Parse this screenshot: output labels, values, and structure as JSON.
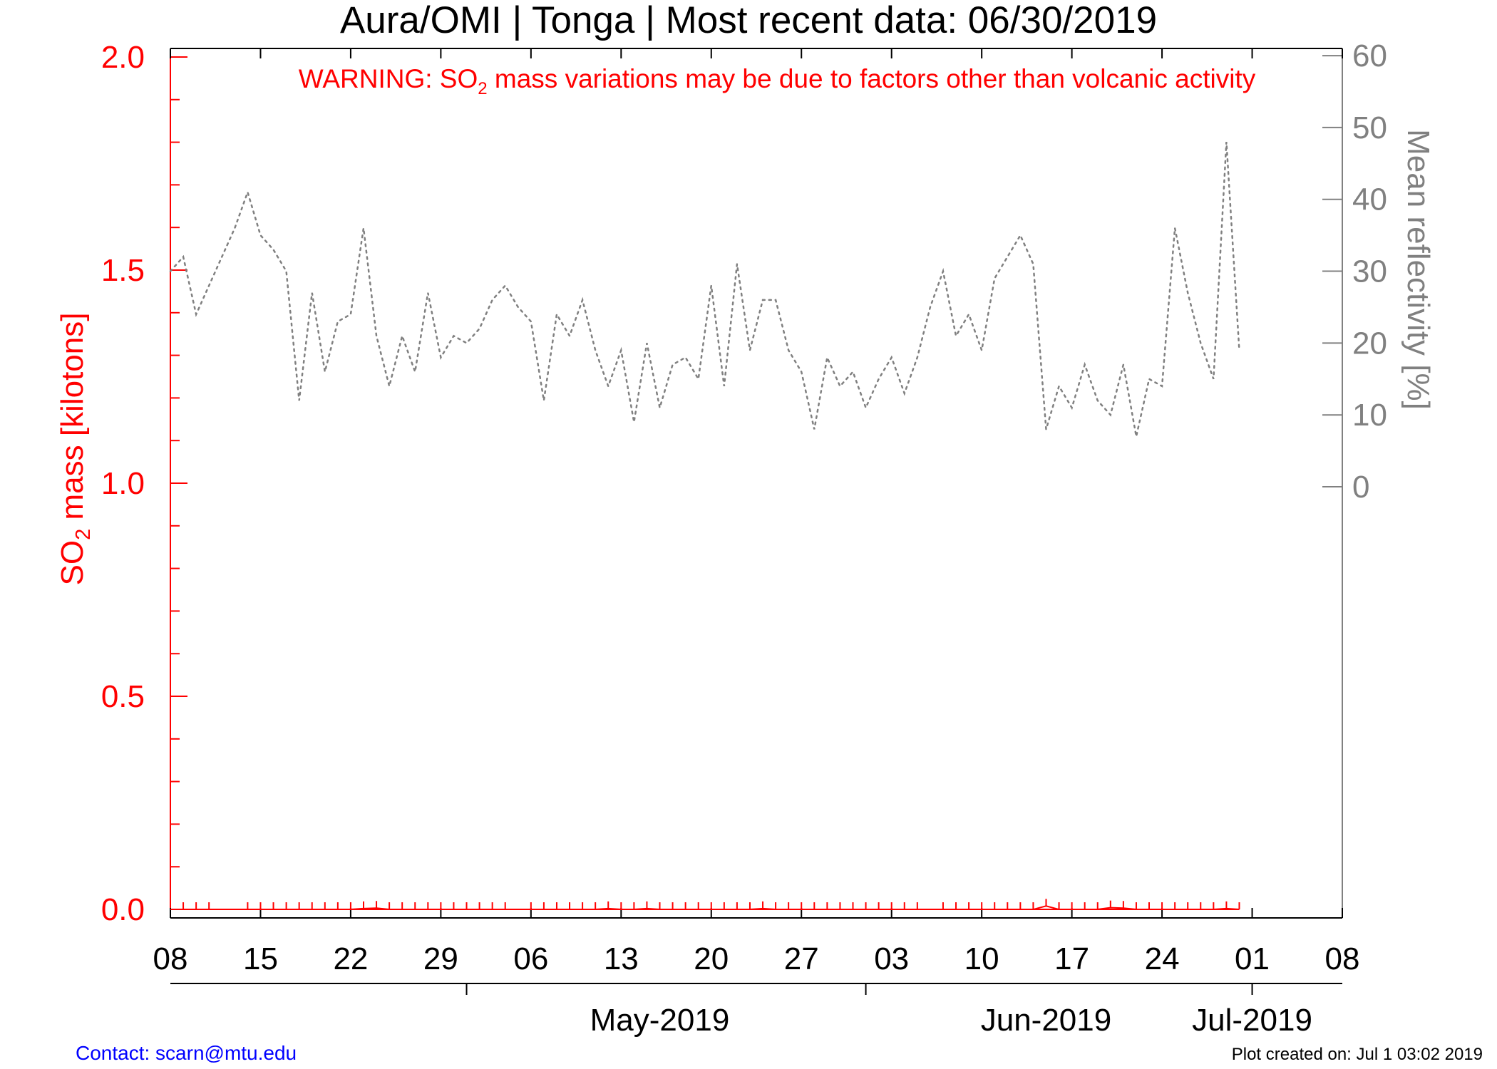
{
  "colors": {
    "so2": "#ff0000",
    "reflectivity": "#808080",
    "axis": "#000000",
    "contact": "#0000ff"
  },
  "footer": {
    "contact": "Contact: scarn@mtu.edu",
    "created": "Plot created on: Jul  1 03:02 2019"
  },
  "chart_data": {
    "type": "line",
    "title": "Aura/OMI | Tonga | Most recent data: 06/30/2019",
    "warning": {
      "prefix": "WARNING: SO",
      "subscript": "2",
      "suffix": " mass variations may be due to factors other than volcanic activity"
    },
    "ylabel_left": {
      "prefix": "SO",
      "subscript": "2",
      "suffix": " mass [kilotons]"
    },
    "ylabel_right": "Mean reflectivity [%]",
    "x_range": [
      "2019-04-08",
      "2019-07-08"
    ],
    "x_tick_labels": [
      "08",
      "15",
      "22",
      "29",
      "06",
      "13",
      "20",
      "27",
      "03",
      "10",
      "17",
      "24",
      "01",
      "08"
    ],
    "x_month_labels": [
      {
        "label": "May-2019",
        "date": "2019-05-16"
      },
      {
        "label": "Jun-2019",
        "date": "2019-06-15"
      },
      {
        "label": "Jul-2019",
        "date": "2019-07-01"
      }
    ],
    "y_left": {
      "range": [
        -0.02,
        2.02
      ],
      "tick_labels": [
        "0.0",
        "0.5",
        "1.0",
        "1.5",
        "2.0"
      ]
    },
    "y_right": {
      "range": [
        -60,
        61
      ],
      "tick_labels": [
        "0",
        "10",
        "20",
        "30",
        "40",
        "50",
        "60"
      ]
    },
    "series": [
      {
        "name": "SO2 mass",
        "axis": "left",
        "style": "solid",
        "dates": [
          "2019-04-09",
          "2019-04-10",
          "2019-04-11",
          "2019-04-14",
          "2019-04-15",
          "2019-04-16",
          "2019-04-17",
          "2019-04-18",
          "2019-04-19",
          "2019-04-20",
          "2019-04-21",
          "2019-04-22",
          "2019-04-23",
          "2019-04-24",
          "2019-04-25",
          "2019-04-26",
          "2019-04-27",
          "2019-04-28",
          "2019-04-29",
          "2019-04-30",
          "2019-05-01",
          "2019-05-02",
          "2019-05-03",
          "2019-05-04",
          "2019-05-06",
          "2019-05-07",
          "2019-05-08",
          "2019-05-09",
          "2019-05-10",
          "2019-05-11",
          "2019-05-12",
          "2019-05-13",
          "2019-05-14",
          "2019-05-15",
          "2019-05-16",
          "2019-05-17",
          "2019-05-18",
          "2019-05-19",
          "2019-05-20",
          "2019-05-21",
          "2019-05-22",
          "2019-05-23",
          "2019-05-24",
          "2019-05-25",
          "2019-05-26",
          "2019-05-27",
          "2019-05-28",
          "2019-05-29",
          "2019-05-30",
          "2019-05-31",
          "2019-06-01",
          "2019-06-02",
          "2019-06-03",
          "2019-06-04",
          "2019-06-05",
          "2019-06-07",
          "2019-06-08",
          "2019-06-09",
          "2019-06-10",
          "2019-06-11",
          "2019-06-12",
          "2019-06-13",
          "2019-06-14",
          "2019-06-15",
          "2019-06-16",
          "2019-06-17",
          "2019-06-18",
          "2019-06-19",
          "2019-06-20",
          "2019-06-21",
          "2019-06-22",
          "2019-06-23",
          "2019-06-24",
          "2019-06-25",
          "2019-06-26",
          "2019-06-27",
          "2019-06-28",
          "2019-06-29",
          "2019-06-30"
        ],
        "values": [
          0,
          0,
          0,
          0,
          0,
          0,
          0,
          0,
          0,
          0,
          0,
          0,
          0.002,
          0.003,
          0,
          0,
          0,
          0,
          0,
          0,
          0,
          0,
          0,
          0,
          0,
          0,
          0,
          0,
          0,
          0,
          0.002,
          0,
          0,
          0.002,
          0,
          0,
          0,
          0,
          0,
          0,
          0,
          0,
          0.002,
          0,
          0,
          0,
          0,
          0,
          0,
          0,
          0,
          0,
          0,
          0,
          0,
          0,
          0,
          0,
          0,
          0,
          0,
          0,
          0,
          0.008,
          0,
          0,
          0,
          0,
          0.004,
          0.003,
          0,
          0,
          0,
          0,
          0,
          0,
          0,
          0.002,
          0
        ]
      },
      {
        "name": "Mean reflectivity",
        "axis": "right",
        "style": "dotted",
        "dates": [
          "2019-04-08",
          "2019-04-09",
          "2019-04-10",
          "2019-04-11",
          "2019-04-12",
          "2019-04-13",
          "2019-04-14",
          "2019-04-15",
          "2019-04-16",
          "2019-04-17",
          "2019-04-18",
          "2019-04-19",
          "2019-04-20",
          "2019-04-21",
          "2019-04-22",
          "2019-04-23",
          "2019-04-24",
          "2019-04-25",
          "2019-04-26",
          "2019-04-27",
          "2019-04-28",
          "2019-04-29",
          "2019-04-30",
          "2019-05-01",
          "2019-05-02",
          "2019-05-03",
          "2019-05-04",
          "2019-05-05",
          "2019-05-06",
          "2019-05-07",
          "2019-05-08",
          "2019-05-09",
          "2019-05-10",
          "2019-05-11",
          "2019-05-12",
          "2019-05-13",
          "2019-05-14",
          "2019-05-15",
          "2019-05-16",
          "2019-05-17",
          "2019-05-18",
          "2019-05-19",
          "2019-05-20",
          "2019-05-21",
          "2019-05-22",
          "2019-05-23",
          "2019-05-24",
          "2019-05-25",
          "2019-05-26",
          "2019-05-27",
          "2019-05-28",
          "2019-05-29",
          "2019-05-30",
          "2019-05-31",
          "2019-06-01",
          "2019-06-02",
          "2019-06-03",
          "2019-06-04",
          "2019-06-05",
          "2019-06-06",
          "2019-06-07",
          "2019-06-08",
          "2019-06-09",
          "2019-06-10",
          "2019-06-11",
          "2019-06-12",
          "2019-06-13",
          "2019-06-14",
          "2019-06-15",
          "2019-06-16",
          "2019-06-17",
          "2019-06-18",
          "2019-06-19",
          "2019-06-20",
          "2019-06-21",
          "2019-06-22",
          "2019-06-23",
          "2019-06-24",
          "2019-06-25",
          "2019-06-26",
          "2019-06-27",
          "2019-06-28",
          "2019-06-29",
          "2019-06-30"
        ],
        "values": [
          30,
          32,
          24,
          28,
          32,
          36,
          41,
          35,
          33,
          30,
          12,
          27,
          16,
          23,
          24,
          36,
          21,
          14,
          21,
          16,
          27,
          18,
          21,
          20,
          22,
          26,
          28,
          25,
          23,
          12,
          24,
          21,
          26,
          19,
          14,
          19,
          9,
          20,
          11,
          17,
          18,
          15,
          28,
          14,
          31,
          19,
          26,
          26,
          19,
          16,
          8,
          18,
          14,
          16,
          11,
          15,
          18,
          13,
          18,
          25,
          30,
          21,
          24,
          19,
          29,
          32,
          35,
          31,
          8,
          14,
          11,
          17,
          12,
          10,
          17,
          7,
          15,
          14,
          36,
          27,
          20,
          15,
          48,
          19
        ]
      }
    ]
  }
}
